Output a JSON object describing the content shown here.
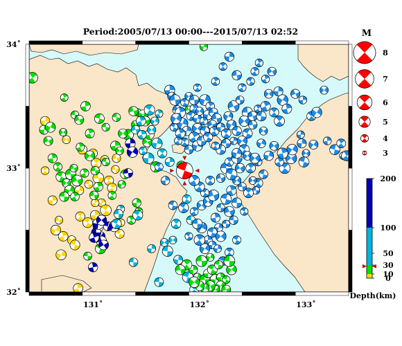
{
  "title": "Period:2005/07/13 00:00---2015/07/13 02:52",
  "map": {
    "lon_range": [
      130.4,
      133.4
    ],
    "lat_range": [
      32.0,
      34.0
    ],
    "lon_ticks": [
      {
        "value": 131,
        "label": "131˚"
      },
      {
        "value": 132,
        "label": "132˚"
      },
      {
        "value": 133,
        "label": "133˚"
      }
    ],
    "lat_ticks": [
      {
        "value": 32,
        "label": "32˚"
      },
      {
        "value": 33,
        "label": "33˚"
      },
      {
        "value": 34,
        "label": "34˚"
      }
    ],
    "colors": {
      "sea": "#d6fafa",
      "land": "#fae6c8",
      "coast": "#000000",
      "frame": "#000000"
    }
  },
  "main_event": {
    "lon": 131.86,
    "lat": 32.98,
    "mag": 5.7,
    "depth_km": 12,
    "color": "#ff0000"
  },
  "magnitude_legend": {
    "title": "M",
    "items": [
      {
        "label": "8",
        "mag": 8
      },
      {
        "label": "7",
        "mag": 7
      },
      {
        "label": "6",
        "mag": 6
      },
      {
        "label": "5",
        "mag": 5
      },
      {
        "label": "4",
        "mag": 4
      },
      {
        "label": "3",
        "mag": 3
      }
    ]
  },
  "depth_scale": {
    "title": "Depth(km)",
    "marker_depth": 12,
    "ticks": [
      {
        "value": 0,
        "label": "0"
      },
      {
        "value": 10,
        "label": "10"
      },
      {
        "value": 30,
        "label": "30"
      },
      {
        "value": 50,
        "label": "50"
      },
      {
        "value": 100,
        "label": "100"
      },
      {
        "value": 200,
        "label": "200"
      }
    ],
    "bands": [
      {
        "from": 0,
        "to": 10,
        "color": "#ffd700"
      },
      {
        "from": 10,
        "to": 30,
        "color": "#00e000"
      },
      {
        "from": 30,
        "to": 100,
        "color": "#00b4dc"
      },
      {
        "from": 100,
        "to": 200,
        "color": "#0000b4"
      }
    ]
  },
  "event_colors": {
    "shallow": "#ffd700",
    "crust": "#00e000",
    "intermediate": "#00b4dc",
    "deep": "#1e6ee6",
    "deepest": "#0000b4"
  },
  "events": [
    {
      "group": "yellow",
      "d": 5,
      "pts": [
        [
          130.55,
          33.38
        ],
        [
          130.55,
          32.98
        ],
        [
          130.62,
          32.74
        ],
        [
          130.68,
          32.58
        ],
        [
          130.72,
          32.45
        ],
        [
          130.8,
          32.42
        ],
        [
          130.83,
          32.38
        ],
        [
          130.88,
          32.61
        ],
        [
          130.95,
          32.56
        ],
        [
          131.02,
          32.62
        ],
        [
          130.96,
          32.87
        ],
        [
          131.05,
          32.92
        ],
        [
          131.08,
          32.72
        ],
        [
          131.12,
          32.66
        ],
        [
          130.87,
          32.82
        ],
        [
          131.03,
          33.04
        ],
        [
          131.11,
          33.07
        ],
        [
          131.15,
          32.9
        ],
        [
          131.18,
          32.84
        ],
        [
          130.75,
          33.23
        ],
        [
          131.0,
          33.12
        ],
        [
          131.21,
          32.99
        ],
        [
          131.22,
          33.08
        ],
        [
          130.9,
          33.15
        ],
        [
          130.86,
          32.03
        ],
        [
          130.7,
          32.3
        ],
        [
          131.26,
          32.56
        ],
        [
          131.25,
          32.47
        ],
        [
          131.02,
          32.72
        ],
        [
          130.65,
          32.5
        ]
      ]
    },
    {
      "group": "green",
      "d": 20,
      "pts": [
        [
          130.43,
          33.73
        ],
        [
          130.54,
          33.31
        ],
        [
          130.58,
          33.22
        ],
        [
          130.62,
          33.08
        ],
        [
          130.67,
          33.01
        ],
        [
          130.7,
          32.93
        ],
        [
          130.75,
          32.88
        ],
        [
          130.79,
          32.95
        ],
        [
          130.85,
          32.9
        ],
        [
          130.78,
          32.82
        ],
        [
          130.73,
          32.77
        ],
        [
          130.83,
          32.77
        ],
        [
          130.88,
          33.17
        ],
        [
          130.97,
          33.1
        ],
        [
          131.02,
          32.98
        ],
        [
          130.73,
          33.57
        ],
        [
          130.93,
          33.5
        ],
        [
          130.83,
          33.43
        ],
        [
          130.87,
          33.39
        ],
        [
          131.21,
          33.18
        ],
        [
          131.25,
          33.14
        ],
        [
          131.33,
          33.27
        ],
        [
          131.42,
          33.45
        ],
        [
          131.47,
          33.43
        ],
        [
          131.49,
          33.38
        ],
        [
          131.4,
          33.35
        ],
        [
          131.22,
          33.41
        ],
        [
          131.12,
          33.33
        ],
        [
          131.51,
          33.21
        ],
        [
          131.59,
          33.01
        ],
        [
          131.83,
          33.02
        ],
        [
          131.41,
          32.72
        ],
        [
          131.43,
          32.65
        ],
        [
          131.36,
          32.58
        ],
        [
          131.07,
          32.35
        ],
        [
          130.95,
          32.29
        ],
        [
          131.06,
          33.4
        ],
        [
          131.3,
          32.95
        ],
        [
          131.05,
          32.85
        ],
        [
          130.72,
          33.29
        ],
        [
          131.28,
          33.28
        ],
        [
          131.01,
          32.78
        ],
        [
          130.6,
          33.33
        ],
        [
          130.92,
          32.96
        ],
        [
          130.82,
          33.0
        ],
        [
          131.12,
          33.05
        ],
        [
          131.18,
          32.78
        ],
        [
          131.27,
          32.87
        ],
        [
          130.97,
          33.28
        ],
        [
          131.38,
          33.46
        ],
        [
          131.53,
          33.27
        ],
        [
          131.9,
          33.47
        ]
      ]
    },
    {
      "group": "deepest",
      "d": 150,
      "pts": [
        [
          131.35,
          33.2
        ],
        [
          131.37,
          33.13
        ],
        [
          131.33,
          32.96
        ],
        [
          131.05,
          32.53
        ],
        [
          131.07,
          32.45
        ],
        [
          131.08,
          32.41
        ],
        [
          131.03,
          32.48
        ],
        [
          131.1,
          32.38
        ],
        [
          131.14,
          32.53
        ],
        [
          131.05,
          32.55
        ],
        [
          131.01,
          32.44
        ],
        [
          131.08,
          32.58
        ],
        [
          131.0,
          32.2
        ],
        [
          131.2,
          32.53
        ]
      ]
    },
    {
      "group": "blue",
      "d": 70,
      "pts": [
        [
          131.26,
          32.67
        ],
        [
          131.24,
          32.63
        ],
        [
          131.22,
          32.55
        ],
        [
          131.42,
          32.62
        ],
        [
          131.55,
          32.35
        ],
        [
          131.38,
          32.24
        ],
        [
          131.52,
          33.08
        ],
        [
          131.62,
          33.44
        ],
        [
          131.58,
          33.38
        ],
        [
          131.55,
          33.31
        ],
        [
          131.4,
          33.31
        ],
        [
          131.45,
          33.38
        ],
        [
          131.53,
          33.47
        ],
        [
          131.46,
          33.27
        ],
        [
          131.6,
          33.2
        ],
        [
          131.47,
          33.14
        ],
        [
          131.65,
          33.12
        ],
        [
          131.72,
          33.05
        ],
        [
          131.92,
          32.58
        ],
        [
          131.75,
          32.42
        ],
        [
          131.8,
          32.26
        ],
        [
          131.89,
          32.12
        ],
        [
          131.95,
          32.02
        ],
        [
          131.62,
          32.08
        ],
        [
          131.67,
          32.4
        ],
        [
          131.7,
          32.33
        ],
        [
          131.78,
          32.55
        ],
        [
          131.88,
          32.75
        ]
      ]
    },
    {
      "group": "blue2",
      "d": 90,
      "pts": [
        [
          131.72,
          33.63
        ],
        [
          131.74,
          33.58
        ],
        [
          131.77,
          33.55
        ],
        [
          131.79,
          33.47
        ],
        [
          131.82,
          33.45
        ],
        [
          131.86,
          33.53
        ],
        [
          131.9,
          33.58
        ],
        [
          131.95,
          33.55
        ],
        [
          131.95,
          33.48
        ],
        [
          131.92,
          33.42
        ],
        [
          131.84,
          33.36
        ],
        [
          131.78,
          33.4
        ],
        [
          131.98,
          33.4
        ],
        [
          132.0,
          33.46
        ],
        [
          132.05,
          33.55
        ],
        [
          132.1,
          33.5
        ],
        [
          132.08,
          33.43
        ],
        [
          132.04,
          33.38
        ],
        [
          131.98,
          33.32
        ],
        [
          131.88,
          33.3
        ],
        [
          131.82,
          33.28
        ],
        [
          131.76,
          33.33
        ],
        [
          132.13,
          33.45
        ],
        [
          132.16,
          33.4
        ],
        [
          132.12,
          33.35
        ],
        [
          132.05,
          33.3
        ],
        [
          131.95,
          33.25
        ],
        [
          131.86,
          33.21
        ],
        [
          131.8,
          33.22
        ],
        [
          131.9,
          33.15
        ],
        [
          131.98,
          33.18
        ],
        [
          132.02,
          33.22
        ],
        [
          132.08,
          33.25
        ],
        [
          132.14,
          33.3
        ],
        [
          132.2,
          33.33
        ],
        [
          132.25,
          33.28
        ],
        [
          132.3,
          33.35
        ],
        [
          132.35,
          33.3
        ],
        [
          132.32,
          33.22
        ],
        [
          132.25,
          33.2
        ],
        [
          132.2,
          33.15
        ],
        [
          132.15,
          33.18
        ],
        [
          132.27,
          33.42
        ],
        [
          132.32,
          33.5
        ],
        [
          132.38,
          33.55
        ],
        [
          132.45,
          33.45
        ],
        [
          132.42,
          33.38
        ],
        [
          132.5,
          33.42
        ],
        [
          132.55,
          33.48
        ],
        [
          132.58,
          33.42
        ],
        [
          132.62,
          33.5
        ],
        [
          132.5,
          33.35
        ],
        [
          132.45,
          33.28
        ],
        [
          132.4,
          33.22
        ],
        [
          131.98,
          33.65
        ],
        [
          132.15,
          33.7
        ],
        [
          132.22,
          33.82
        ],
        [
          132.28,
          33.9
        ],
        [
          132.35,
          33.75
        ],
        [
          132.4,
          33.65
        ],
        [
          132.48,
          33.7
        ],
        [
          132.52,
          33.78
        ],
        [
          132.56,
          33.85
        ],
        [
          132.62,
          33.72
        ],
        [
          132.68,
          33.78
        ],
        [
          132.74,
          33.62
        ],
        [
          132.78,
          33.55
        ],
        [
          132.65,
          33.6
        ],
        [
          132.7,
          33.45
        ],
        [
          132.75,
          33.38
        ],
        [
          132.82,
          33.48
        ],
        [
          132.9,
          33.6
        ],
        [
          132.97,
          33.55
        ],
        [
          133.05,
          33.42
        ],
        [
          133.1,
          33.45
        ],
        [
          133.17,
          33.63
        ],
        [
          133.2,
          33.22
        ],
        [
          133.27,
          33.15
        ],
        [
          133.33,
          33.2
        ],
        [
          133.35,
          33.1
        ],
        [
          133.38,
          33.1
        ],
        [
          132.95,
          33.27
        ],
        [
          132.96,
          33.2
        ],
        [
          133.0,
          33.12
        ],
        [
          133.07,
          33.19
        ],
        [
          132.98,
          33.05
        ],
        [
          132.86,
          33.08
        ],
        [
          132.8,
          33.0
        ],
        [
          132.75,
          33.05
        ],
        [
          132.87,
          33.15
        ],
        [
          132.78,
          33.12
        ],
        [
          132.7,
          33.18
        ],
        [
          132.6,
          33.3
        ],
        [
          132.65,
          33.1
        ],
        [
          132.58,
          33.2
        ],
        [
          132.55,
          33.05
        ],
        [
          132.6,
          32.95
        ],
        [
          132.55,
          32.88
        ],
        [
          132.53,
          32.82
        ],
        [
          132.46,
          32.8
        ],
        [
          132.4,
          32.85
        ],
        [
          132.35,
          32.9
        ],
        [
          132.3,
          32.82
        ],
        [
          132.25,
          32.75
        ],
        [
          132.2,
          32.68
        ],
        [
          132.28,
          32.65
        ],
        [
          132.35,
          32.72
        ],
        [
          132.42,
          32.65
        ],
        [
          132.32,
          32.58
        ],
        [
          132.25,
          32.55
        ],
        [
          132.18,
          32.52
        ],
        [
          132.12,
          32.48
        ],
        [
          132.08,
          32.42
        ],
        [
          132.12,
          32.38
        ],
        [
          132.17,
          32.35
        ],
        [
          132.05,
          32.35
        ],
        [
          132.0,
          32.42
        ],
        [
          132.02,
          32.52
        ],
        [
          131.98,
          32.55
        ],
        [
          131.95,
          32.65
        ],
        [
          132.02,
          32.7
        ],
        [
          132.08,
          32.73
        ],
        [
          132.13,
          32.78
        ],
        [
          132.05,
          32.8
        ],
        [
          132.0,
          32.85
        ],
        [
          131.95,
          32.9
        ],
        [
          132.1,
          32.9
        ],
        [
          132.2,
          32.92
        ],
        [
          132.25,
          33.0
        ],
        [
          132.28,
          33.05
        ],
        [
          132.35,
          33.08
        ],
        [
          132.42,
          33.15
        ],
        [
          132.45,
          33.1
        ],
        [
          132.38,
          33.0
        ],
        [
          132.48,
          33.0
        ],
        [
          132.52,
          33.08
        ],
        [
          132.2,
          32.45
        ],
        [
          132.35,
          33.12
        ],
        [
          132.5,
          32.9
        ],
        [
          132.3,
          32.95
        ],
        [
          132.15,
          32.6
        ],
        [
          132.22,
          32.25
        ],
        [
          132.28,
          32.32
        ],
        [
          132.35,
          32.42
        ],
        [
          131.62,
          33.01
        ],
        [
          131.68,
          32.9
        ],
        [
          131.75,
          32.7
        ],
        [
          131.85,
          32.68
        ],
        [
          131.9,
          32.45
        ]
      ]
    },
    {
      "group": "green2",
      "d": 25,
      "pts": [
        [
          132.04,
          33.98
        ],
        [
          131.94,
          32.18
        ],
        [
          131.98,
          32.12
        ],
        [
          132.05,
          32.1
        ],
        [
          132.08,
          32.15
        ],
        [
          132.12,
          32.18
        ],
        [
          132.15,
          32.1
        ],
        [
          132.2,
          32.12
        ],
        [
          132.25,
          32.1
        ],
        [
          132.2,
          32.05
        ],
        [
          132.15,
          32.02
        ],
        [
          132.1,
          32.05
        ],
        [
          132.05,
          32.03
        ],
        [
          132.0,
          32.05
        ],
        [
          131.95,
          32.08
        ],
        [
          132.25,
          32.02
        ],
        [
          132.3,
          32.18
        ],
        [
          132.28,
          32.25
        ],
        [
          132.1,
          32.28
        ],
        [
          132.02,
          32.25
        ],
        [
          132.18,
          32.22
        ],
        [
          131.88,
          32.22
        ],
        [
          131.82,
          32.18
        ]
      ]
    }
  ]
}
